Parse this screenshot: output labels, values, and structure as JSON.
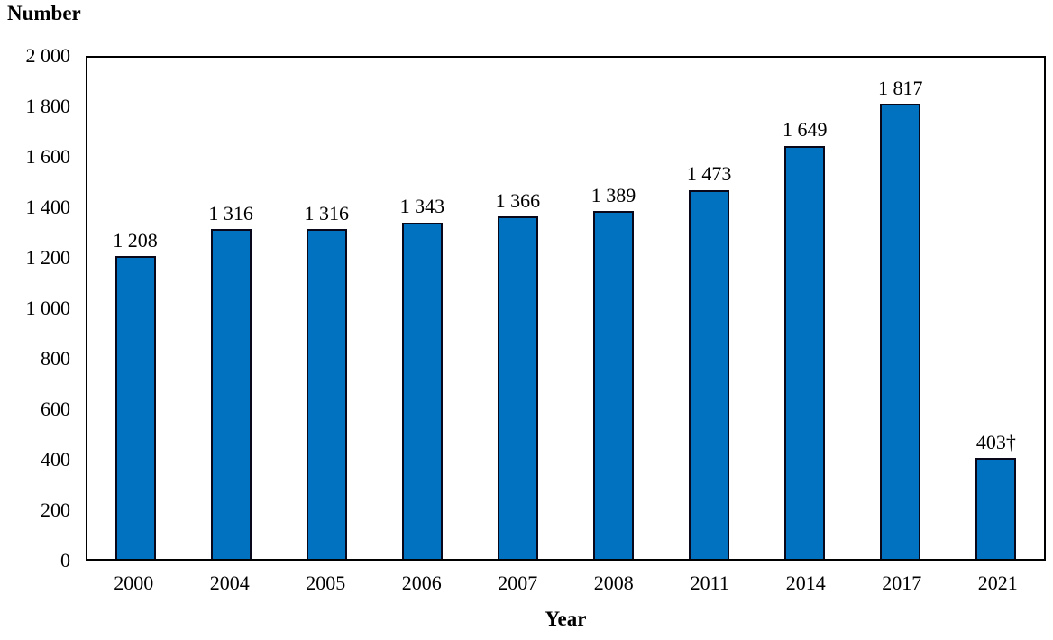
{
  "chart_data": {
    "type": "bar",
    "title": "",
    "ylabel": "Number",
    "xlabel": "Year",
    "ylim": [
      0,
      2000
    ],
    "grid": false,
    "legend_position": "none",
    "categories": [
      "2000",
      "2004",
      "2005",
      "2006",
      "2007",
      "2008",
      "2011",
      "2014",
      "2017",
      "2021"
    ],
    "values": [
      1208,
      1316,
      1316,
      1343,
      1366,
      1389,
      1473,
      1649,
      1817,
      403
    ],
    "value_labels": [
      "1 208",
      "1 316",
      "1 316",
      "1 343",
      "1 366",
      "1 389",
      "1 473",
      "1 649",
      "1 817",
      "403†"
    ],
    "footnote_marker": "†",
    "yticks": [
      0,
      200,
      400,
      600,
      800,
      1000,
      1200,
      1400,
      1600,
      1800,
      2000
    ],
    "ytick_labels": [
      "0",
      "200",
      "400",
      "600",
      "800",
      "1 000",
      "1 200",
      "1 400",
      "1 600",
      "1 800",
      "2 000"
    ],
    "bar_color": "#0072C0",
    "bar_border_color": "#08081a",
    "axis_color": "#000000",
    "background_color": "#ffffff"
  }
}
